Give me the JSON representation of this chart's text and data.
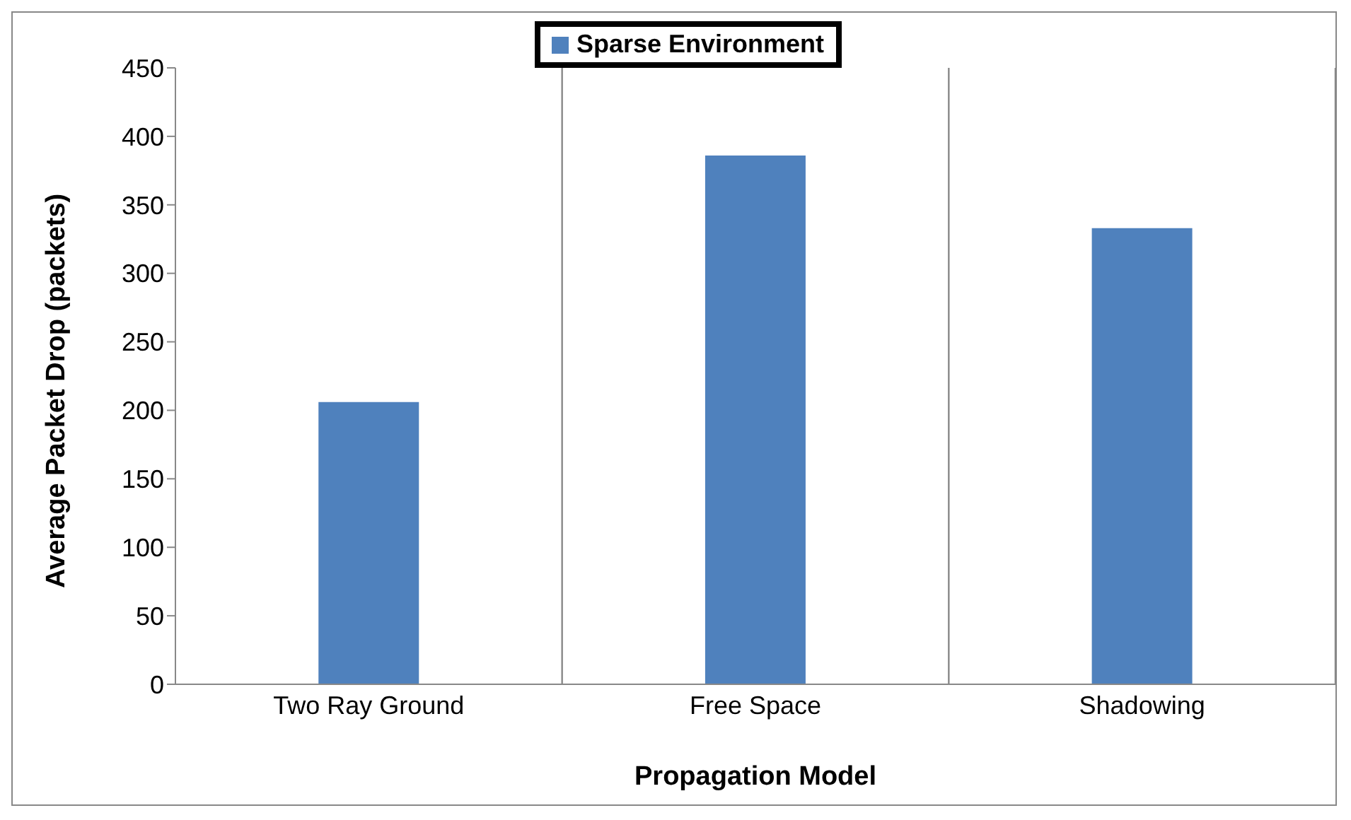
{
  "chart_data": {
    "type": "bar",
    "xlabel": "Propagation Model",
    "ylabel": "Average Packet Drop (packets)",
    "categories": [
      "Two Ray Ground",
      "Free Space",
      "Shadowing"
    ],
    "series": [
      {
        "name": "Sparse Environment",
        "color": "#4f81bd",
        "values": [
          206,
          386,
          333
        ]
      }
    ],
    "ylim": [
      0,
      450
    ],
    "yticks": [
      0,
      50,
      100,
      150,
      200,
      250,
      300,
      350,
      400,
      450
    ],
    "grid": "x",
    "legend": "top"
  }
}
